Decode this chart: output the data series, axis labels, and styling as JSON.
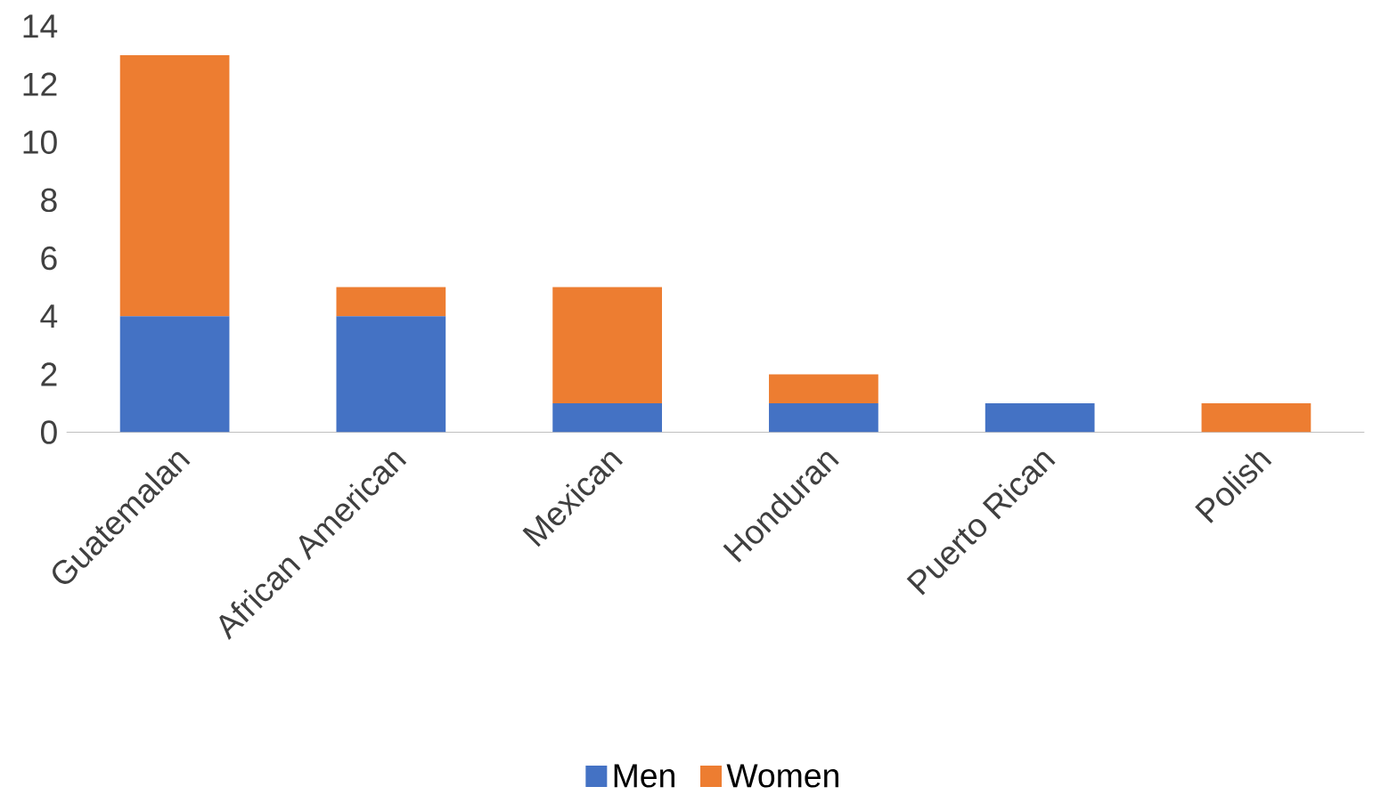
{
  "chart_data": {
    "type": "bar",
    "stacked": true,
    "categories": [
      "Guatemalan",
      "African American",
      "Mexican",
      "Honduran",
      "Puerto Rican",
      "Polish"
    ],
    "series": [
      {
        "name": "Men",
        "color": "#4472c4",
        "values": [
          4,
          4,
          1,
          1,
          1,
          0
        ]
      },
      {
        "name": "Women",
        "color": "#ed7d31",
        "values": [
          9,
          1,
          4,
          1,
          0,
          1
        ]
      }
    ],
    "ylim": [
      0,
      14
    ],
    "yticks": [
      0,
      2,
      4,
      6,
      8,
      10,
      12,
      14
    ],
    "legend": "bottom"
  }
}
